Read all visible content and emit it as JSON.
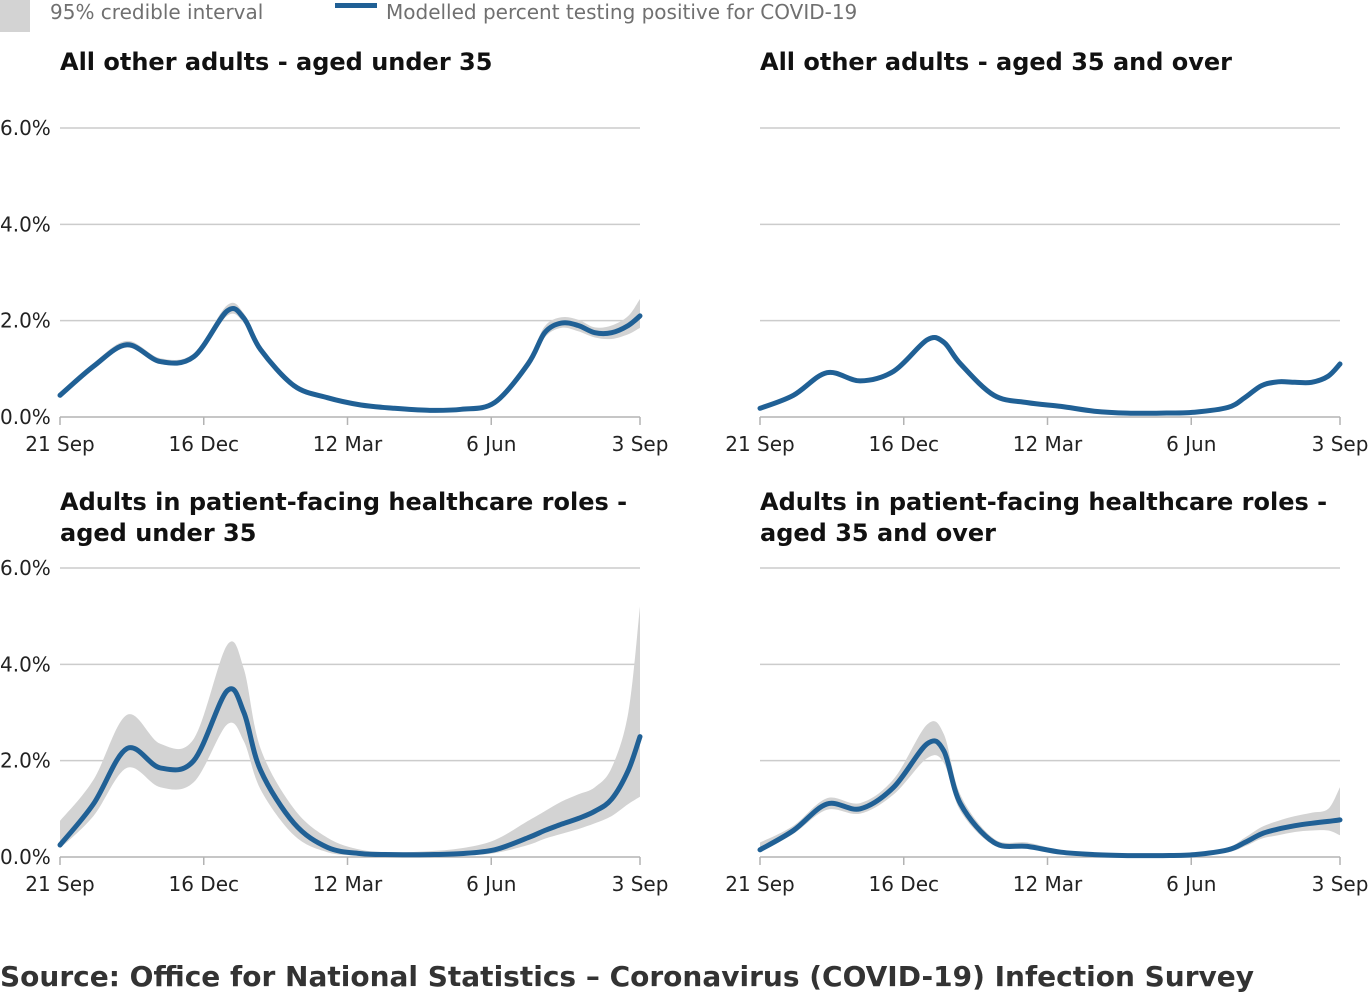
{
  "legend": {
    "interval_label": "95% credible interval",
    "line_label": "Modelled percent testing positive for COVID-19"
  },
  "colors": {
    "line": "#206095",
    "band": "#d3d3d3",
    "grid": "#cccccc",
    "axis": "#b3b3b3"
  },
  "source": "Source: Office for National Statistics – Coronavirus (COVID-19) Infection Survey",
  "chart_data": [
    {
      "type": "line",
      "title": "All other adults - aged under 35",
      "x_ticks": [
        "21 Sep",
        "16 Dec",
        "12 Mar",
        "6 Jun",
        "3 Sep"
      ],
      "y_ticks": [
        "0.0%",
        "2.0%",
        "4.0%",
        "6.0%"
      ],
      "ylim": [
        0,
        6
      ],
      "xlim": [
        "2020-09-21",
        "2021-09-03"
      ],
      "series": [
        {
          "name": "Modelled percent testing positive for COVID-19",
          "x": [
            "2020-09-21",
            "2020-10-11",
            "2020-10-31",
            "2020-11-20",
            "2020-12-10",
            "2020-12-30",
            "2021-01-09",
            "2021-01-19",
            "2021-02-08",
            "2021-02-28",
            "2021-03-20",
            "2021-04-09",
            "2021-04-29",
            "2021-05-19",
            "2021-06-08",
            "2021-06-28",
            "2021-07-08",
            "2021-07-18",
            "2021-07-28",
            "2021-08-07",
            "2021-08-17",
            "2021-08-27",
            "2021-09-03"
          ],
          "values": [
            0.45,
            1.05,
            1.5,
            1.15,
            1.25,
            2.2,
            2.05,
            1.4,
            0.65,
            0.4,
            0.25,
            0.18,
            0.14,
            0.16,
            0.3,
            1.1,
            1.75,
            1.95,
            1.9,
            1.75,
            1.75,
            1.9,
            2.1
          ]
        },
        {
          "name": "95% credible interval",
          "lower": [
            0.4,
            1.0,
            1.44,
            1.1,
            1.2,
            2.1,
            1.95,
            1.33,
            0.6,
            0.37,
            0.22,
            0.15,
            0.12,
            0.14,
            0.26,
            1.02,
            1.65,
            1.85,
            1.78,
            1.65,
            1.62,
            1.72,
            1.85
          ],
          "upper": [
            0.52,
            1.12,
            1.58,
            1.22,
            1.32,
            2.32,
            2.15,
            1.47,
            0.7,
            0.44,
            0.28,
            0.21,
            0.17,
            0.19,
            0.34,
            1.2,
            1.88,
            2.07,
            2.02,
            1.86,
            1.9,
            2.1,
            2.45
          ]
        }
      ]
    },
    {
      "type": "line",
      "title": "All other adults - aged 35 and over",
      "x_ticks": [
        "21 Sep",
        "16 Dec",
        "12 Mar",
        "6 Jun",
        "3 Sep"
      ],
      "y_ticks": [
        "0.0%",
        "2.0%",
        "4.0%",
        "6.0%"
      ],
      "ylim": [
        0,
        6
      ],
      "xlim": [
        "2020-09-21",
        "2021-09-03"
      ],
      "series": [
        {
          "name": "Modelled percent testing positive for COVID-19",
          "x": [
            "2020-09-21",
            "2020-10-11",
            "2020-10-31",
            "2020-11-20",
            "2020-12-10",
            "2020-12-30",
            "2021-01-09",
            "2021-01-19",
            "2021-02-08",
            "2021-02-28",
            "2021-03-20",
            "2021-04-09",
            "2021-04-29",
            "2021-05-19",
            "2021-06-08",
            "2021-06-28",
            "2021-07-08",
            "2021-07-18",
            "2021-07-28",
            "2021-08-07",
            "2021-08-17",
            "2021-08-27",
            "2021-09-03"
          ],
          "values": [
            0.18,
            0.45,
            0.92,
            0.75,
            0.95,
            1.6,
            1.55,
            1.1,
            0.45,
            0.3,
            0.22,
            0.12,
            0.08,
            0.08,
            0.1,
            0.2,
            0.4,
            0.65,
            0.73,
            0.72,
            0.72,
            0.85,
            1.1
          ]
        },
        {
          "name": "95% credible interval",
          "lower": [
            0.16,
            0.42,
            0.88,
            0.71,
            0.91,
            1.55,
            1.5,
            1.06,
            0.42,
            0.28,
            0.2,
            0.1,
            0.07,
            0.07,
            0.09,
            0.18,
            0.37,
            0.61,
            0.69,
            0.68,
            0.67,
            0.79,
            1.02
          ],
          "upper": [
            0.2,
            0.48,
            0.96,
            0.79,
            0.99,
            1.65,
            1.6,
            1.14,
            0.48,
            0.32,
            0.24,
            0.14,
            0.09,
            0.09,
            0.11,
            0.22,
            0.43,
            0.69,
            0.77,
            0.76,
            0.77,
            0.91,
            1.18
          ]
        }
      ]
    },
    {
      "type": "line",
      "title": "Adults in patient-facing healthcare roles - aged under 35",
      "x_ticks": [
        "21 Sep",
        "16 Dec",
        "12 Mar",
        "6 Jun",
        "3 Sep"
      ],
      "y_ticks": [
        "0.0%",
        "2.0%",
        "4.0%",
        "6.0%"
      ],
      "ylim": [
        0,
        6
      ],
      "xlim": [
        "2020-09-21",
        "2021-09-03"
      ],
      "series": [
        {
          "name": "Modelled percent testing positive for COVID-19",
          "x": [
            "2020-09-21",
            "2020-10-11",
            "2020-10-31",
            "2020-11-20",
            "2020-12-10",
            "2020-12-30",
            "2021-01-09",
            "2021-01-19",
            "2021-02-08",
            "2021-02-28",
            "2021-03-20",
            "2021-04-09",
            "2021-04-29",
            "2021-05-19",
            "2021-06-08",
            "2021-06-28",
            "2021-07-08",
            "2021-07-18",
            "2021-07-28",
            "2021-08-07",
            "2021-08-17",
            "2021-08-27",
            "2021-09-03"
          ],
          "values": [
            0.25,
            1.1,
            2.25,
            1.85,
            2.0,
            3.45,
            3.0,
            1.8,
            0.7,
            0.2,
            0.07,
            0.05,
            0.05,
            0.07,
            0.15,
            0.4,
            0.55,
            0.68,
            0.8,
            0.95,
            1.2,
            1.8,
            2.5
          ]
        },
        {
          "name": "95% credible interval",
          "lower": [
            0.18,
            0.85,
            1.85,
            1.45,
            1.55,
            2.75,
            2.4,
            1.4,
            0.45,
            0.1,
            0.03,
            0.02,
            0.02,
            0.03,
            0.08,
            0.25,
            0.38,
            0.48,
            0.58,
            0.7,
            0.85,
            1.1,
            1.25
          ],
          "upper": [
            0.75,
            1.6,
            2.95,
            2.35,
            2.45,
            4.4,
            3.9,
            2.25,
            1.0,
            0.4,
            0.15,
            0.1,
            0.12,
            0.18,
            0.35,
            0.75,
            0.95,
            1.15,
            1.3,
            1.45,
            1.85,
            3.0,
            5.2
          ]
        }
      ]
    },
    {
      "type": "line",
      "title": "Adults in patient-facing healthcare roles - aged 35 and over",
      "x_ticks": [
        "21 Sep",
        "16 Dec",
        "12 Mar",
        "6 Jun",
        "3 Sep"
      ],
      "y_ticks": [
        "0.0%",
        "2.0%",
        "4.0%",
        "6.0%"
      ],
      "ylim": [
        0,
        6
      ],
      "xlim": [
        "2020-09-21",
        "2021-09-03"
      ],
      "series": [
        {
          "name": "Modelled percent testing positive for COVID-19",
          "x": [
            "2020-09-21",
            "2020-10-11",
            "2020-10-31",
            "2020-11-20",
            "2020-12-10",
            "2020-12-30",
            "2021-01-09",
            "2021-01-19",
            "2021-02-08",
            "2021-02-28",
            "2021-03-20",
            "2021-04-09",
            "2021-04-29",
            "2021-05-19",
            "2021-06-08",
            "2021-06-28",
            "2021-07-08",
            "2021-07-18",
            "2021-07-28",
            "2021-08-07",
            "2021-08-17",
            "2021-08-27",
            "2021-09-03"
          ],
          "values": [
            0.15,
            0.55,
            1.1,
            1.0,
            1.45,
            2.35,
            2.2,
            1.1,
            0.3,
            0.22,
            0.1,
            0.05,
            0.03,
            0.03,
            0.05,
            0.15,
            0.3,
            0.48,
            0.58,
            0.65,
            0.7,
            0.74,
            0.77
          ]
        },
        {
          "name": "95% credible interval",
          "lower": [
            0.1,
            0.48,
            0.98,
            0.9,
            1.3,
            2.05,
            1.95,
            0.95,
            0.24,
            0.18,
            0.07,
            0.03,
            0.02,
            0.02,
            0.03,
            0.1,
            0.22,
            0.38,
            0.45,
            0.52,
            0.55,
            0.55,
            0.45
          ],
          "upper": [
            0.3,
            0.65,
            1.22,
            1.12,
            1.62,
            2.75,
            2.55,
            1.28,
            0.38,
            0.3,
            0.14,
            0.08,
            0.05,
            0.05,
            0.08,
            0.2,
            0.4,
            0.62,
            0.75,
            0.85,
            0.92,
            1.0,
            1.45
          ]
        }
      ]
    }
  ]
}
